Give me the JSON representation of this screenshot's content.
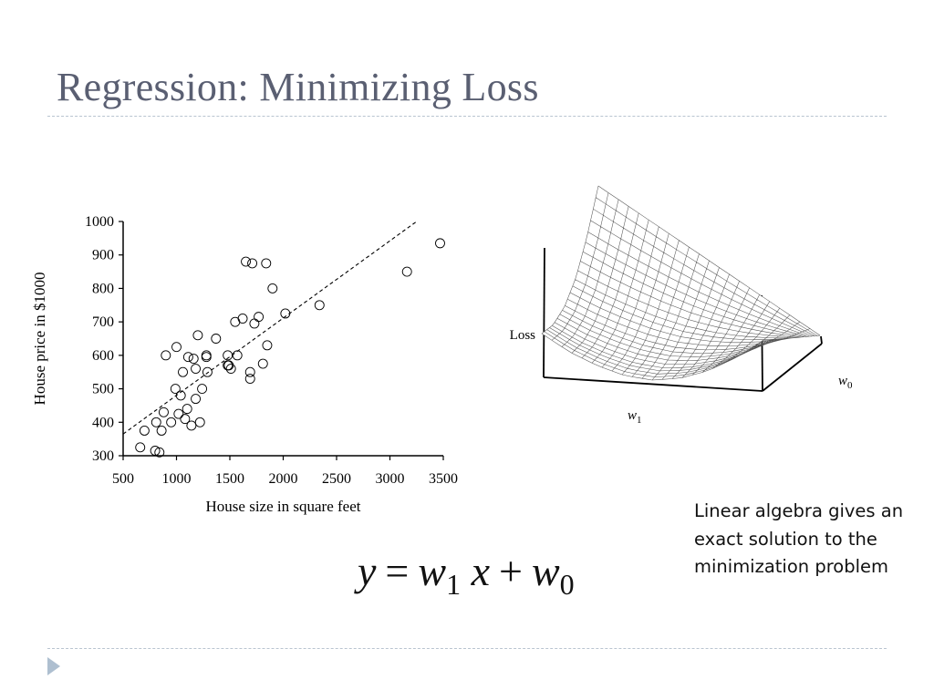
{
  "slide": {
    "title": "Regression: Minimizing Loss",
    "note": "Linear algebra gives an exact solution to the minimization problem",
    "formula": {
      "y": "y",
      "eq": "=",
      "w": "w",
      "sub1": "1",
      "x": "x",
      "plus": "+",
      "sub0": "0"
    }
  },
  "colors": {
    "title": "#5a5f72",
    "rule": "#b9c4d0",
    "nav": "#aebfd0"
  },
  "icons": {
    "nav": "play-triangle-icon"
  },
  "chart_data": [
    {
      "type": "scatter",
      "xlabel": "House size in square feet",
      "ylabel": "House price in $1000",
      "xlim": [
        500,
        3500
      ],
      "ylim": [
        300,
        1000
      ],
      "xticks": [
        500,
        1000,
        1500,
        2000,
        2500,
        3000,
        3500
      ],
      "yticks": [
        300,
        400,
        500,
        600,
        700,
        800,
        900,
        1000
      ],
      "grid": false,
      "marker": "open-circle",
      "points": [
        [
          660,
          325
        ],
        [
          700,
          375
        ],
        [
          800,
          315
        ],
        [
          840,
          310
        ],
        [
          810,
          400
        ],
        [
          860,
          375
        ],
        [
          880,
          430
        ],
        [
          900,
          600
        ],
        [
          950,
          400
        ],
        [
          990,
          500
        ],
        [
          1000,
          625
        ],
        [
          1020,
          425
        ],
        [
          1040,
          480
        ],
        [
          1060,
          550
        ],
        [
          1080,
          410
        ],
        [
          1100,
          440
        ],
        [
          1110,
          595
        ],
        [
          1140,
          390
        ],
        [
          1160,
          590
        ],
        [
          1180,
          560
        ],
        [
          1180,
          470
        ],
        [
          1200,
          660
        ],
        [
          1220,
          400
        ],
        [
          1240,
          500
        ],
        [
          1280,
          600
        ],
        [
          1280,
          595
        ],
        [
          1290,
          550
        ],
        [
          1370,
          650
        ],
        [
          1480,
          600
        ],
        [
          1480,
          570
        ],
        [
          1490,
          570
        ],
        [
          1510,
          560
        ],
        [
          1550,
          700
        ],
        [
          1570,
          600
        ],
        [
          1620,
          710
        ],
        [
          1650,
          880
        ],
        [
          1690,
          550
        ],
        [
          1690,
          530
        ],
        [
          1710,
          875
        ],
        [
          1730,
          695
        ],
        [
          1770,
          715
        ],
        [
          1810,
          575
        ],
        [
          1840,
          875
        ],
        [
          1850,
          630
        ],
        [
          1900,
          800
        ],
        [
          2020,
          725
        ],
        [
          2340,
          750
        ],
        [
          3160,
          850
        ],
        [
          3470,
          935
        ]
      ],
      "fit_line": {
        "style": "dashed",
        "from": [
          500,
          365
        ],
        "to": [
          3250,
          1000
        ]
      }
    },
    {
      "type": "surface",
      "zlabel": "Loss",
      "xlabel": "w",
      "xlabel_sub": "1",
      "ylabel": "w",
      "ylabel_sub": "0",
      "surface": "convex-bowl-wireframe"
    }
  ]
}
